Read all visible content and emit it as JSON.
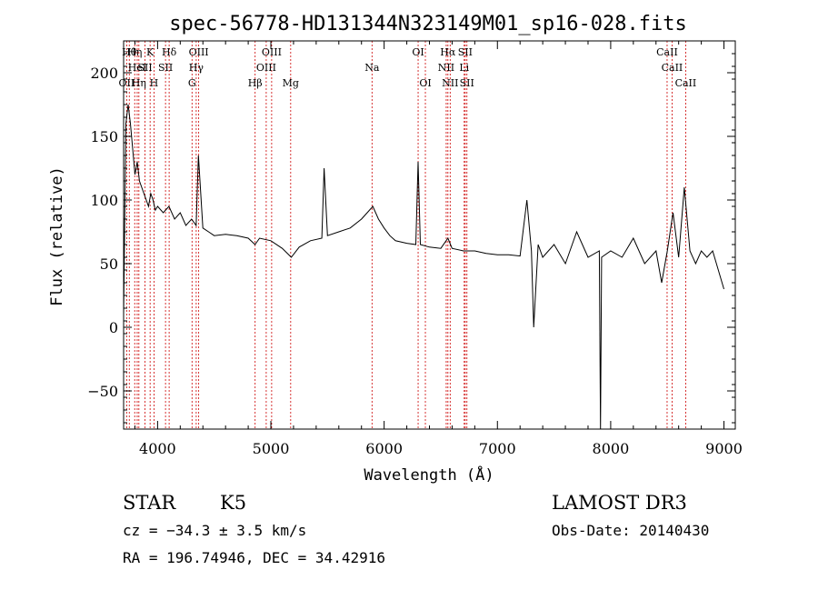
{
  "chart_data": {
    "type": "line",
    "title": "spec-56778-HD131344N323149M01_sp16-028.fits",
    "xlabel": "Wavelength (Å)",
    "ylabel": "Flux (relative)",
    "xlim": [
      3700,
      9100
    ],
    "ylim": [
      -80,
      225
    ],
    "x_ticks": [
      4000,
      5000,
      6000,
      7000,
      8000,
      9000
    ],
    "y_ticks": [
      -50,
      0,
      50,
      100,
      150,
      200
    ],
    "grid": false,
    "series": [
      {
        "x": [
          3700,
          3720,
          3740,
          3760,
          3780,
          3800,
          3820,
          3840,
          3860,
          3880,
          3900,
          3920,
          3940,
          3960,
          3980,
          4000,
          4050,
          4100,
          4150,
          4200,
          4250,
          4300,
          4340,
          4360,
          4400,
          4450,
          4500,
          4600,
          4700,
          4800,
          4860,
          4900,
          5000,
          5100,
          5180,
          5250,
          5350,
          5450,
          5470,
          5500,
          5600,
          5700,
          5800,
          5850,
          5900,
          5950,
          6000,
          6050,
          6100,
          6200,
          6280,
          6300,
          6320,
          6400,
          6500,
          6563,
          6600,
          6700,
          6800,
          6900,
          7000,
          7100,
          7200,
          7260,
          7300,
          7320,
          7360,
          7400,
          7500,
          7600,
          7700,
          7800,
          7900,
          7910,
          7920,
          8000,
          8100,
          8200,
          8300,
          8400,
          8450,
          8500,
          8550,
          8600,
          8650,
          8700,
          8750,
          8800,
          8850,
          8900,
          8950,
          9000
        ],
        "values": [
          10,
          160,
          175,
          160,
          140,
          120,
          130,
          115,
          110,
          105,
          100,
          95,
          105,
          100,
          92,
          95,
          90,
          95,
          85,
          90,
          80,
          85,
          80,
          135,
          78,
          75,
          72,
          73,
          72,
          70,
          65,
          70,
          68,
          62,
          55,
          63,
          68,
          70,
          125,
          72,
          75,
          78,
          85,
          90,
          95,
          85,
          78,
          72,
          68,
          66,
          65,
          130,
          65,
          63,
          62,
          70,
          62,
          60,
          60,
          58,
          57,
          57,
          56,
          100,
          60,
          0,
          65,
          55,
          65,
          50,
          75,
          55,
          60,
          -80,
          55,
          60,
          55,
          70,
          50,
          60,
          35,
          60,
          90,
          55,
          110,
          60,
          50,
          60,
          55,
          60,
          45,
          30
        ]
      }
    ],
    "line_markers": [
      {
        "wavelength": 3727,
        "row": 2,
        "label": "OII"
      },
      {
        "wavelength": 3750,
        "row": 0,
        "label": "Hθ"
      },
      {
        "wavelength": 3798,
        "row": 0,
        "label": "Hη"
      },
      {
        "wavelength": 3820,
        "row": 1,
        "label": "HeI"
      },
      {
        "wavelength": 3835,
        "row": 2,
        "label": "Hη"
      },
      {
        "wavelength": 3889,
        "row": 1,
        "label": "SII"
      },
      {
        "wavelength": 3934,
        "row": 0,
        "label": "K"
      },
      {
        "wavelength": 3968,
        "row": 2,
        "label": "H"
      },
      {
        "wavelength": 4070,
        "row": 1,
        "label": "SII"
      },
      {
        "wavelength": 4102,
        "row": 0,
        "label": "Hδ"
      },
      {
        "wavelength": 4304,
        "row": 2,
        "label": "G"
      },
      {
        "wavelength": 4341,
        "row": 1,
        "label": "Hγ"
      },
      {
        "wavelength": 4363,
        "row": 0,
        "label": "OIII"
      },
      {
        "wavelength": 4861,
        "row": 2,
        "label": "Hβ"
      },
      {
        "wavelength": 4959,
        "row": 1,
        "label": "OIII"
      },
      {
        "wavelength": 5007,
        "row": 0,
        "label": "OIII"
      },
      {
        "wavelength": 5175,
        "row": 2,
        "label": "Mg"
      },
      {
        "wavelength": 5893,
        "row": 1,
        "label": "Na"
      },
      {
        "wavelength": 6300,
        "row": 0,
        "label": "OI"
      },
      {
        "wavelength": 6364,
        "row": 2,
        "label": "OI"
      },
      {
        "wavelength": 6548,
        "row": 1,
        "label": "NII"
      },
      {
        "wavelength": 6563,
        "row": 0,
        "label": "Hα"
      },
      {
        "wavelength": 6583,
        "row": 2,
        "label": "NII"
      },
      {
        "wavelength": 6707,
        "row": 1,
        "label": "Li"
      },
      {
        "wavelength": 6716,
        "row": 0,
        "label": "SII"
      },
      {
        "wavelength": 6731,
        "row": 2,
        "label": "SII"
      },
      {
        "wavelength": 8498,
        "row": 0,
        "label": "CaII"
      },
      {
        "wavelength": 8542,
        "row": 1,
        "label": "CaII"
      },
      {
        "wavelength": 8662,
        "row": 2,
        "label": "CaII"
      }
    ]
  },
  "info": {
    "object_class": "STAR",
    "subclass": "K5",
    "survey": "LAMOST DR3",
    "cz": "cz = −34.3 ± 3.5 km/s",
    "obs_date": "Obs-Date: 20140430",
    "coords": "RA = 196.74946, DEC =  34.42916"
  },
  "colors": {
    "spectrum": "#000000",
    "marker_line": "#cc0000",
    "axis": "#000000",
    "background": "#ffffff"
  }
}
